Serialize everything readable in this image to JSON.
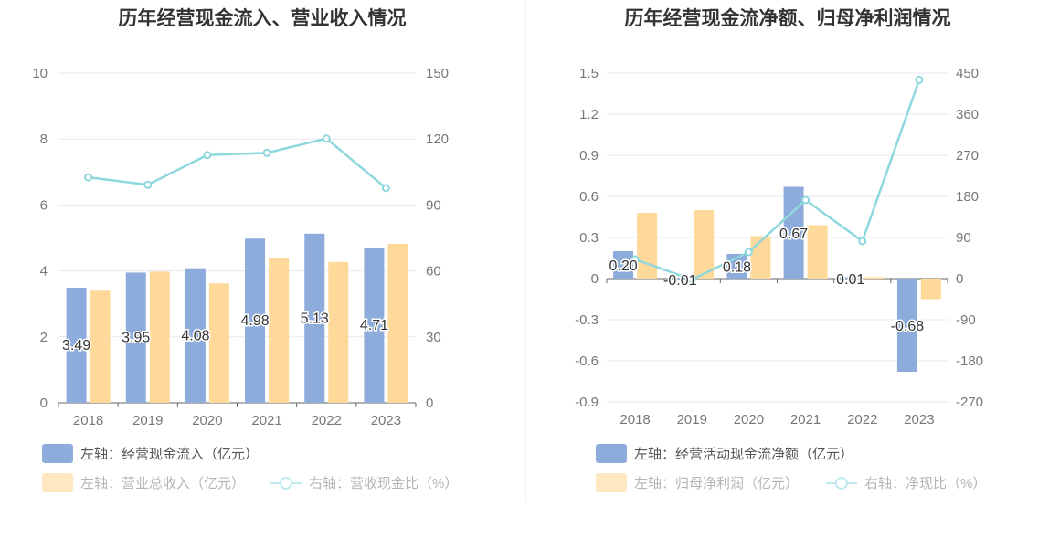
{
  "chart_data": [
    {
      "type": "bar",
      "title": "历年经营现金流入、营业收入情况",
      "categories": [
        "2018",
        "2019",
        "2020",
        "2021",
        "2022",
        "2023"
      ],
      "series": [
        {
          "name": "左轴：经营现金流入（亿元）",
          "axis": "left",
          "type": "bar",
          "color": "#8eacdb",
          "values": [
            3.49,
            3.95,
            4.08,
            4.98,
            5.13,
            4.71
          ],
          "labels": [
            "3.49",
            "3.95",
            "4.08",
            "4.98",
            "5.13",
            "4.71"
          ]
        },
        {
          "name": "左轴：营业总收入（亿元）",
          "axis": "left",
          "type": "bar",
          "color": "#ffd999",
          "values": [
            3.4,
            3.98,
            3.62,
            4.38,
            4.27,
            4.82
          ]
        },
        {
          "name": "右轴：营收现金比（%）",
          "axis": "right",
          "type": "line",
          "color": "#8ed7dd",
          "values": [
            102.6,
            99.2,
            112.7,
            113.7,
            120.2,
            97.7
          ]
        }
      ],
      "ylim_left": [
        0,
        10
      ],
      "yticks_left": [
        "0",
        "2",
        "4",
        "6",
        "8",
        "10"
      ],
      "ylim_right": [
        0,
        150
      ],
      "yticks_right": [
        "0",
        "30",
        "60",
        "90",
        "120",
        "150"
      ],
      "grid": true,
      "legend": "bottom"
    },
    {
      "type": "bar",
      "title": "历年经营现金流净额、归母净利润情况",
      "categories": [
        "2018",
        "2019",
        "2020",
        "2021",
        "2022",
        "2023"
      ],
      "series": [
        {
          "name": "左轴：经营活动现金流净额（亿元）",
          "axis": "left",
          "type": "bar",
          "color": "#8eacdb",
          "values": [
            0.2,
            -0.01,
            0.18,
            0.67,
            0.01,
            -0.68
          ],
          "labels": [
            "0.20",
            "-0.01",
            "0.18",
            "0.67",
            "0.01",
            "-0.68"
          ]
        },
        {
          "name": "左轴：归母净利润（亿元）",
          "axis": "left",
          "type": "bar",
          "color": "#ffd999",
          "values": [
            0.48,
            0.5,
            0.31,
            0.39,
            0.01,
            -0.15
          ]
        },
        {
          "name": "右轴：净现比（%）",
          "axis": "right",
          "type": "line",
          "color": "#8ed7dd",
          "values": [
            42,
            -2,
            58,
            172,
            82,
            435
          ]
        }
      ],
      "ylim_left": [
        -0.9,
        1.5
      ],
      "yticks_left": [
        "-0.9",
        "-0.6",
        "-0.3",
        "0",
        "0.3",
        "0.6",
        "0.9",
        "1.2",
        "1.5"
      ],
      "ylim_right": [
        -270,
        450
      ],
      "yticks_right": [
        "-270",
        "-180",
        "-90",
        "0",
        "90",
        "180",
        "270",
        "360",
        "450"
      ],
      "grid": true,
      "legend": "bottom"
    }
  ]
}
